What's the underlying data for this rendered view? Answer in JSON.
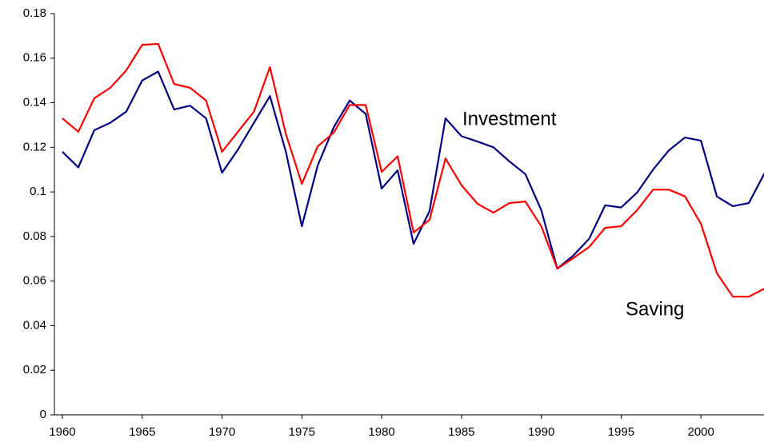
{
  "chart_data": {
    "type": "line",
    "x": [
      1960,
      1961,
      1962,
      1963,
      1964,
      1965,
      1966,
      1967,
      1968,
      1969,
      1970,
      1971,
      1972,
      1973,
      1974,
      1975,
      1976,
      1977,
      1978,
      1979,
      1980,
      1981,
      1982,
      1983,
      1984,
      1985,
      1986,
      1987,
      1988,
      1989,
      1990,
      1991,
      1992,
      1993,
      1994,
      1995,
      1996,
      1997,
      1998,
      1999,
      2000,
      2001,
      2002,
      2003,
      2004
    ],
    "series": [
      {
        "name": "Investment",
        "color": "#000080",
        "values": [
          0.118,
          0.111,
          0.1277,
          0.131,
          0.136,
          0.15,
          0.154,
          0.137,
          0.1387,
          0.133,
          0.1086,
          0.119,
          0.131,
          0.143,
          0.118,
          0.0846,
          0.112,
          0.129,
          0.141,
          0.135,
          0.1015,
          0.1097,
          0.0767,
          0.0914,
          0.133,
          0.125,
          0.1226,
          0.12,
          0.1137,
          0.108,
          0.0918,
          0.0656,
          0.0714,
          0.079,
          0.094,
          0.093,
          0.0997,
          0.11,
          0.1187,
          0.1244,
          0.123,
          0.0979,
          0.0936,
          0.095,
          0.1086
        ]
      },
      {
        "name": "Saving",
        "color": "#ff0000",
        "values": [
          0.133,
          0.127,
          0.142,
          0.1467,
          0.1545,
          0.166,
          0.1664,
          0.1484,
          0.1467,
          0.141,
          0.118,
          0.127,
          0.136,
          0.156,
          0.126,
          0.1036,
          0.1205,
          0.1266,
          0.139,
          0.139,
          0.109,
          0.116,
          0.0818,
          0.0875,
          0.115,
          0.103,
          0.0947,
          0.0907,
          0.095,
          0.0957,
          0.0846,
          0.0656,
          0.0703,
          0.0753,
          0.0839,
          0.0846,
          0.0918,
          0.101,
          0.101,
          0.098,
          0.0857,
          0.0635,
          0.053,
          0.053,
          0.0567
        ]
      }
    ],
    "xlim": [
      1959.5,
      2004
    ],
    "xticks": [
      1960,
      1965,
      1970,
      1975,
      1980,
      1985,
      1990,
      1995,
      2000
    ],
    "ylim": [
      0,
      0.18
    ],
    "yticks": [
      0,
      0.02,
      0.04,
      0.06,
      0.08,
      0.1,
      0.12,
      0.14,
      0.16,
      0.18
    ],
    "grid": false
  }
}
